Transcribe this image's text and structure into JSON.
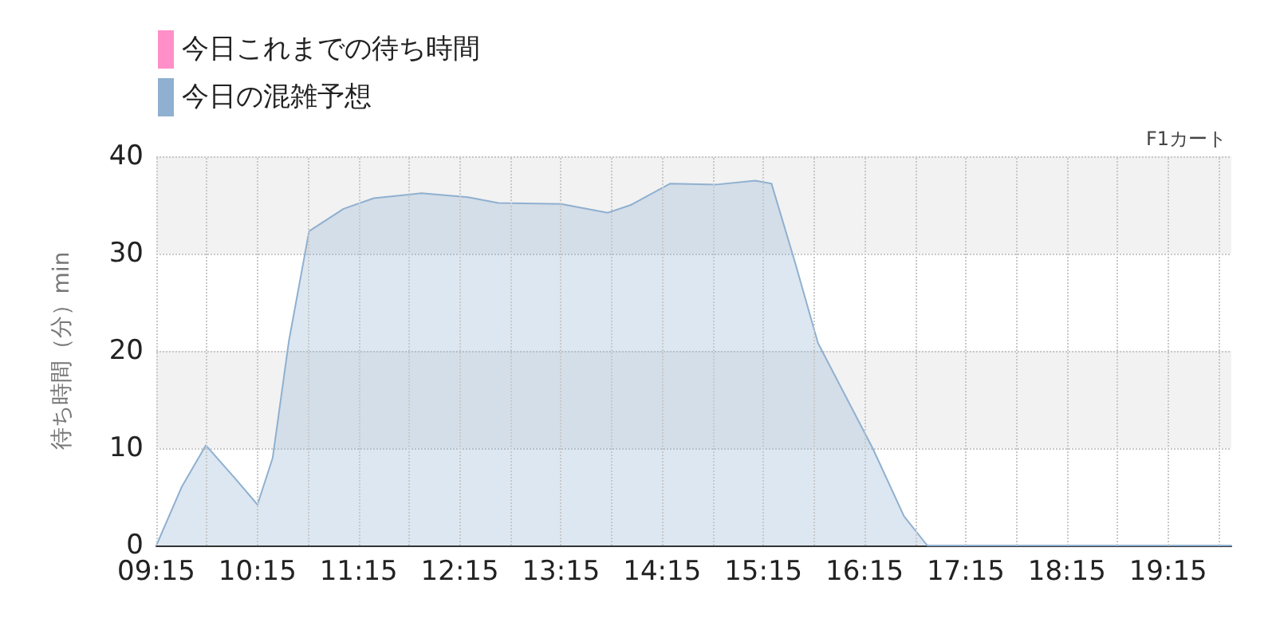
{
  "chart_data": {
    "type": "area",
    "subtitle": "F1カート",
    "ylabel": "待ち時間（分）min",
    "xlim": [
      9.25,
      19.875
    ],
    "xticks": [
      {
        "value": 9.25,
        "label": "09:15"
      },
      {
        "value": 9.75,
        "label": null
      },
      {
        "value": 10.25,
        "label": "10:15"
      },
      {
        "value": 10.75,
        "label": null
      },
      {
        "value": 11.25,
        "label": "11:15"
      },
      {
        "value": 11.75,
        "label": null
      },
      {
        "value": 12.25,
        "label": "12:15"
      },
      {
        "value": 12.75,
        "label": null
      },
      {
        "value": 13.25,
        "label": "13:15"
      },
      {
        "value": 13.75,
        "label": null
      },
      {
        "value": 14.25,
        "label": "14:15"
      },
      {
        "value": 14.75,
        "label": null
      },
      {
        "value": 15.25,
        "label": "15:15"
      },
      {
        "value": 15.75,
        "label": null
      },
      {
        "value": 16.25,
        "label": "16:15"
      },
      {
        "value": 16.75,
        "label": null
      },
      {
        "value": 17.25,
        "label": "17:15"
      },
      {
        "value": 17.75,
        "label": null
      },
      {
        "value": 18.25,
        "label": "18:15"
      },
      {
        "value": 18.75,
        "label": null
      },
      {
        "value": 19.25,
        "label": "19:15"
      },
      {
        "value": 19.75,
        "label": null
      }
    ],
    "ylim": [
      0,
      40
    ],
    "yticks": [
      0,
      10,
      20,
      30,
      40
    ],
    "grid": true,
    "legend": "top left",
    "marker": "none",
    "series": [
      {
        "name": "今日これまでの待ち時間",
        "color": "#ff8fc8"
      },
      {
        "name": "今日の混雑予想",
        "color": "#8fb0d0",
        "x": [
          9.25,
          9.5,
          9.74,
          10.02,
          10.25,
          10.4,
          10.56,
          10.76,
          11.1,
          11.4,
          11.87,
          12.33,
          12.63,
          13.25,
          13.71,
          13.94,
          14.33,
          14.79,
          15.17,
          15.33,
          15.56,
          15.79,
          16.33,
          16.64,
          16.87,
          19.875
        ],
        "values": [
          0,
          6,
          10.3,
          7,
          4.2,
          9,
          21,
          32.3,
          34.6,
          35.7,
          36.2,
          35.8,
          35.2,
          35.1,
          34.2,
          35,
          37.2,
          37.1,
          37.5,
          37.2,
          29.2,
          20.8,
          10,
          3,
          0,
          0
        ]
      }
    ]
  }
}
